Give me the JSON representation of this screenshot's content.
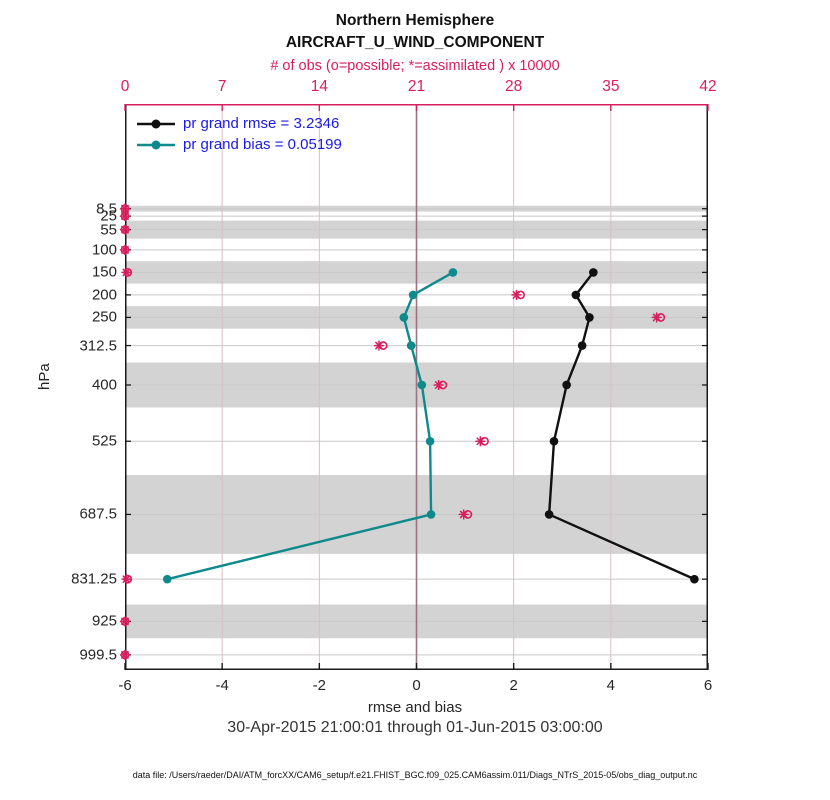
{
  "chart_data": {
    "type": "line",
    "title": "Northern Hemisphere",
    "subtitle": "AIRCRAFT_U_WIND_COMPONENT",
    "top_axis_label": "# of obs (o=possible; *=assimilated ) x 10000",
    "xlabel": "rmse and bias",
    "ylabel": "hPa",
    "xlim": [
      -6,
      6
    ],
    "x_ticks": [
      -6,
      -4,
      -2,
      0,
      2,
      4,
      6
    ],
    "top_xlim": [
      0,
      42
    ],
    "top_ticks": [
      0,
      7,
      14,
      21,
      28,
      35,
      42
    ],
    "ylim_pressure": [
      -224,
      1033
    ],
    "y_axis_inverted_note": "pressure increases downward, linear scale",
    "levels": [
      8.5,
      25,
      55,
      100,
      150,
      200,
      250,
      312.5,
      400,
      525,
      687.5,
      831.25,
      925,
      999.5
    ],
    "level_tick_labels": [
      "8.5",
      "25",
      "55",
      "100",
      "150",
      "200",
      "250",
      "312.5",
      "400",
      "525",
      "687.5",
      "831.25",
      "925",
      "999.5"
    ],
    "level_edges": [
      [
        2,
        15
      ],
      [
        15,
        35
      ],
      [
        35,
        75
      ],
      [
        75,
        125
      ],
      [
        125,
        175
      ],
      [
        175,
        225
      ],
      [
        225,
        275
      ],
      [
        275,
        350
      ],
      [
        350,
        450
      ],
      [
        450,
        600
      ],
      [
        600,
        775
      ],
      [
        775,
        887.5
      ],
      [
        887.5,
        962.5
      ],
      [
        962.5,
        1037.5
      ]
    ],
    "shaded_level_indices": [
      0,
      2,
      4,
      6,
      8,
      10,
      12
    ],
    "series": [
      {
        "name": "rmse",
        "levels": [
          150,
          200,
          250,
          312.5,
          400,
          525,
          687.5,
          831.25
        ],
        "values": [
          3.64,
          3.28,
          3.56,
          3.41,
          3.09,
          2.83,
          2.73,
          5.72
        ]
      },
      {
        "name": "bias",
        "levels": [
          150,
          200,
          250,
          312.5,
          400,
          525,
          687.5,
          831.25
        ],
        "values": [
          0.75,
          -0.07,
          -0.26,
          -0.11,
          0.11,
          0.28,
          0.3,
          -5.13
        ]
      }
    ],
    "obs_counts_x10000": {
      "levels": [
        8.5,
        25,
        55,
        100,
        150,
        200,
        250,
        312.5,
        400,
        525,
        687.5,
        831.25,
        925,
        999.5
      ],
      "possible": [
        0,
        0,
        0,
        0,
        0.2,
        28.5,
        38.6,
        18.6,
        22.9,
        25.9,
        24.7,
        0.2,
        0,
        0
      ],
      "assimilated": [
        0,
        0,
        0,
        0,
        0.1,
        28.2,
        38.3,
        18.3,
        22.6,
        25.6,
        24.4,
        0.1,
        0,
        0
      ]
    },
    "legend": [
      {
        "label": "pr grand rmse = 3.2346",
        "series": "rmse"
      },
      {
        "label": "pr grand bias = 0.05199",
        "series": "bias"
      }
    ],
    "colors": {
      "rmse": "#111111",
      "bias": "#0e8a8d",
      "obs": "#d81e5b",
      "legend_text": "#1a1ae6",
      "band_gray": "#d3d3d3",
      "level_line": "#c9c9c9",
      "grid_pink": "#ddbcc6",
      "zero_line": "#9b737f",
      "axis_black": "#1a1a1a"
    },
    "footer": {
      "date_range": "30-Apr-2015 21:00:01 through 01-Jun-2015 03:00:00",
      "data_file": "data file: /Users/raeder/DAI/ATM_forcXX/CAM6_setup/f.e21.FHIST_BGC.f09_025.CAM6assim.011/Diags_NTrS_2015-05/obs_diag_output.nc"
    }
  }
}
